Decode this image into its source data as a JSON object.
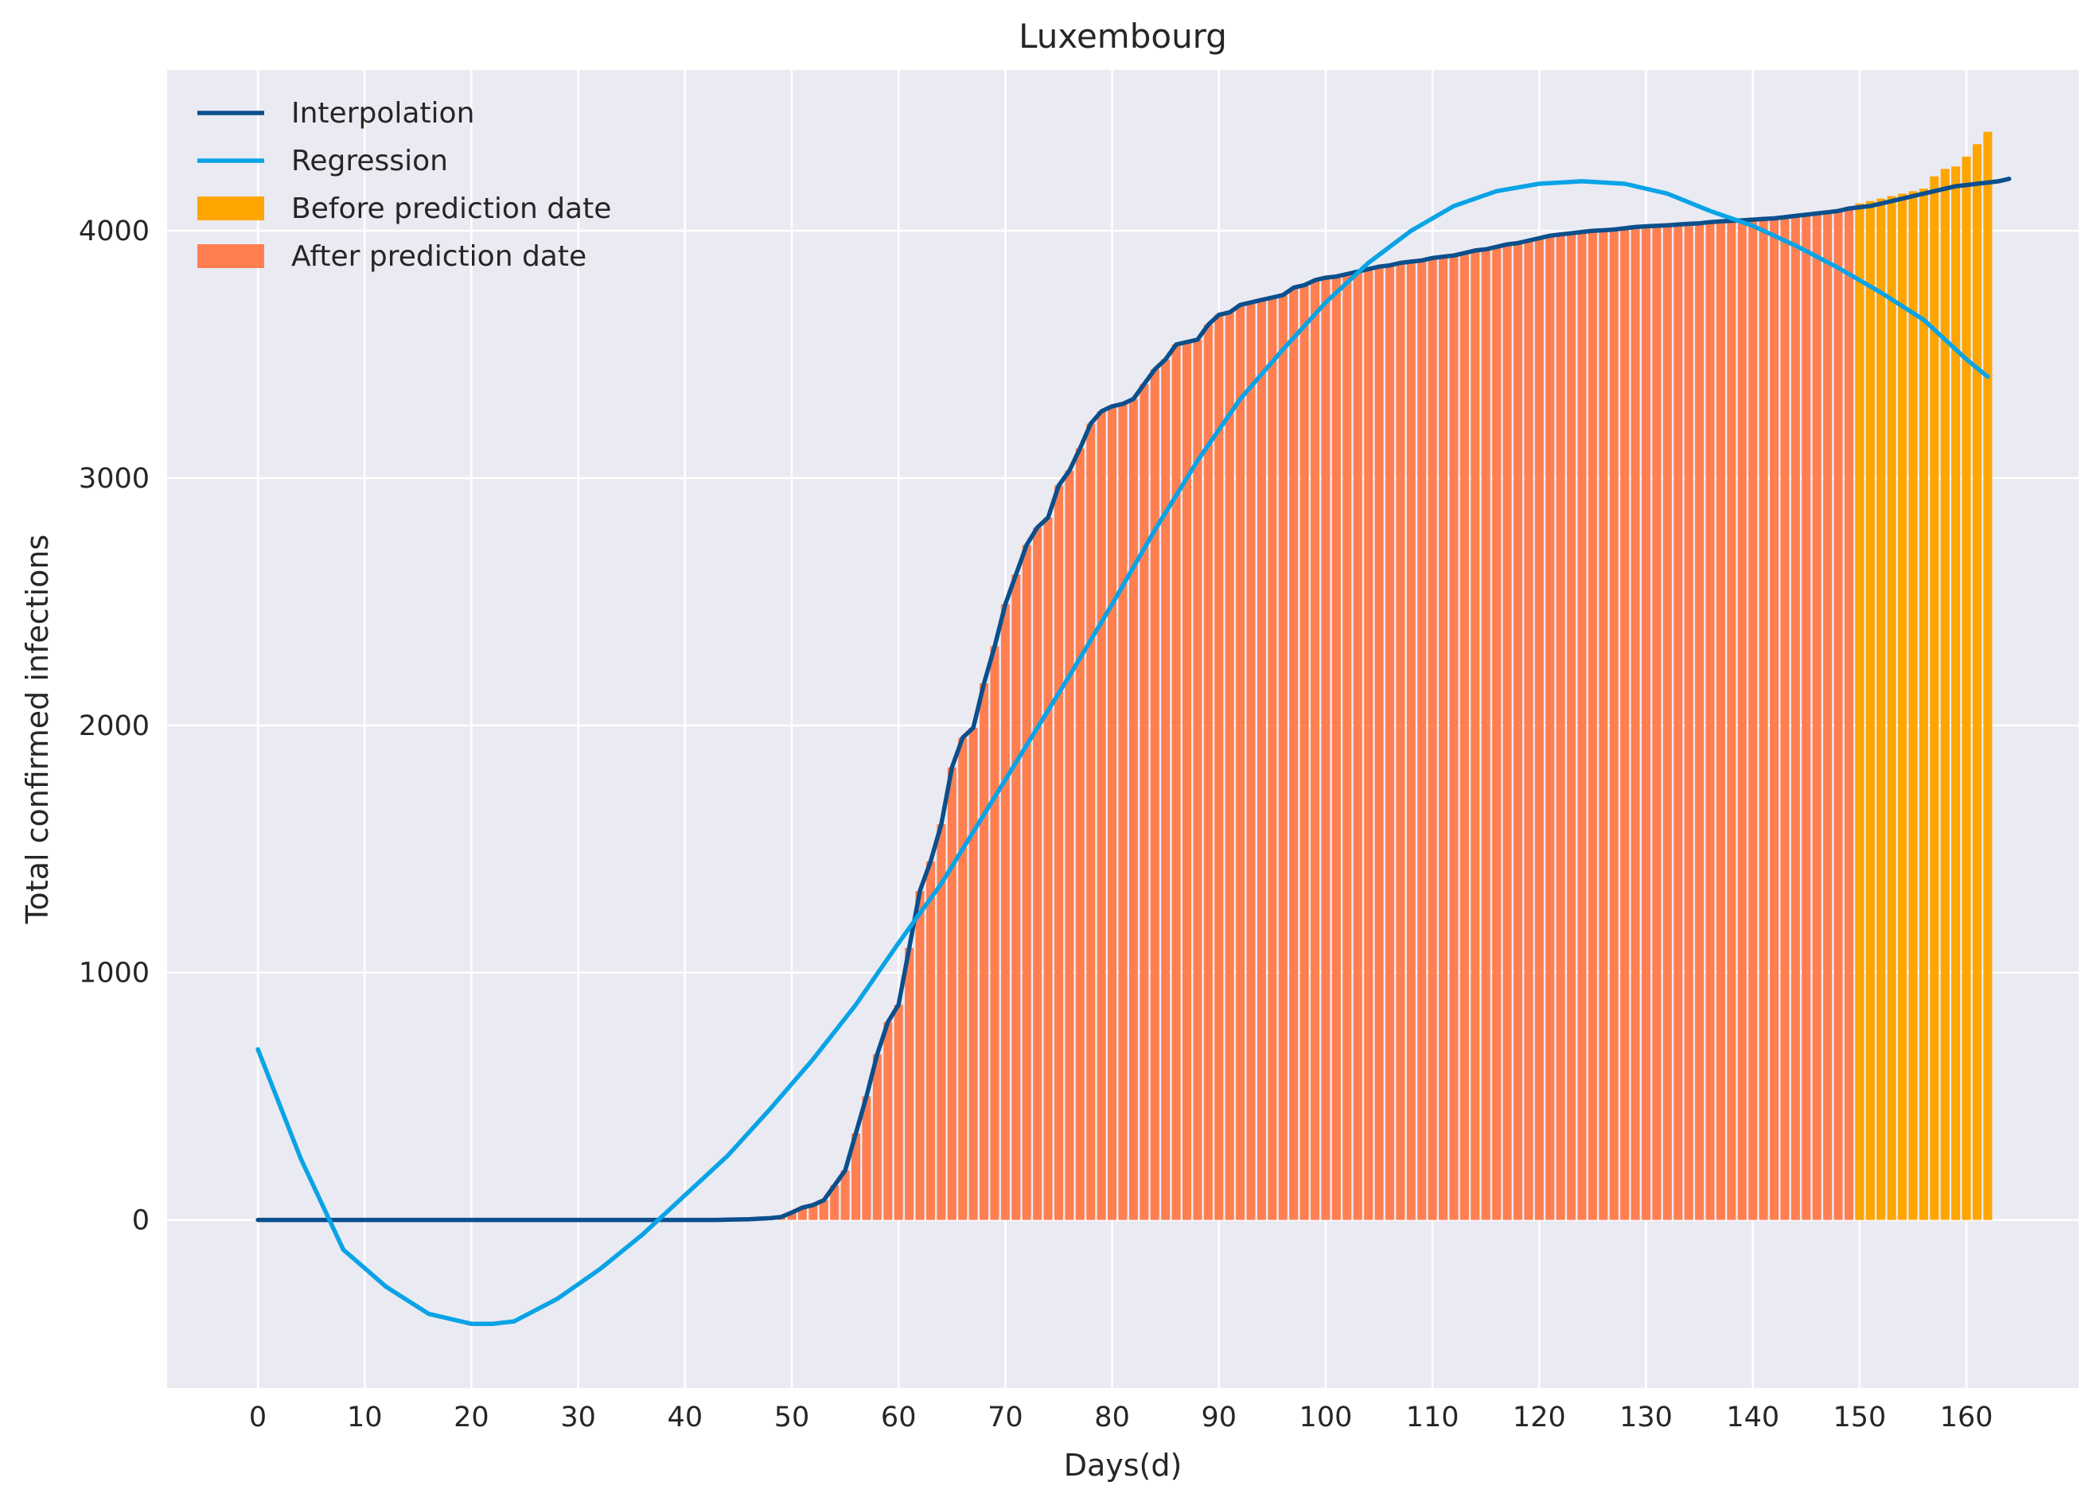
{
  "chart_data": {
    "type": "bar",
    "title": "Luxembourg",
    "xlabel": "Days(d)",
    "ylabel": "Total confirmed infections",
    "xlim": [
      -8.5,
      170.5
    ],
    "ylim": [
      -680,
      4650
    ],
    "xticks": [
      0,
      10,
      20,
      30,
      40,
      50,
      60,
      70,
      80,
      90,
      100,
      110,
      120,
      130,
      140,
      150,
      160
    ],
    "yticks": [
      0,
      1000,
      2000,
      3000,
      4000
    ],
    "grid": true,
    "legend_position": "top-left",
    "colors": {
      "background": "#eaeaf2",
      "grid": "#ffffff",
      "interpolation": "#0b4f8c",
      "regression": "#0aa3e6",
      "before_prediction": "#ffa500",
      "after_prediction": "#ff7f50"
    },
    "legend": [
      {
        "label": "Interpolation",
        "kind": "line",
        "color": "#0b4f8c"
      },
      {
        "label": "Regression",
        "kind": "line",
        "color": "#0aa3e6"
      },
      {
        "label": "Before prediction date",
        "kind": "patch",
        "color": "#ffa500"
      },
      {
        "label": "After prediction date",
        "kind": "patch",
        "color": "#ff7f50"
      }
    ],
    "bars_after_prediction_date": {
      "x_start": 0,
      "values": [
        0,
        0,
        0,
        0,
        0,
        0,
        0,
        0,
        0,
        0,
        0,
        0,
        0,
        0,
        0,
        0,
        0,
        0,
        0,
        0,
        0,
        0,
        0,
        0,
        0,
        0,
        0,
        0,
        0,
        0,
        0,
        0,
        0,
        0,
        0,
        0,
        0,
        0,
        0,
        0,
        0,
        0,
        0,
        0,
        1,
        2,
        3,
        5,
        7,
        12,
        30,
        50,
        60,
        80,
        140,
        200,
        350,
        500,
        670,
        800,
        870,
        1100,
        1330,
        1450,
        1600,
        1830,
        1950,
        1990,
        2170,
        2320,
        2490,
        2610,
        2730,
        2800,
        2840,
        2970,
        3030,
        3120,
        3220,
        3270,
        3290,
        3300,
        3320,
        3380,
        3440,
        3480,
        3540,
        3550,
        3560,
        3620,
        3660,
        3670,
        3700,
        3710,
        3720,
        3730,
        3740,
        3770,
        3780,
        3800,
        3810,
        3815,
        3825,
        3835,
        3845,
        3855,
        3860,
        3870,
        3875,
        3880,
        3890,
        3895,
        3900,
        3910,
        3920,
        3925,
        3935,
        3945,
        3950,
        3960,
        3970,
        3980,
        3985,
        3990,
        3995,
        4000,
        4002,
        4005,
        4010,
        4015,
        4018,
        4020,
        4022,
        4025,
        4028,
        4030,
        4035,
        4038,
        4040,
        4042,
        4045,
        4048,
        4050,
        4055,
        4060,
        4065,
        4070,
        4075,
        4080,
        4090,
        4095,
        4100
      ]
    },
    "bars_before_prediction_date": {
      "x_start": 150,
      "values": [
        4110,
        4120,
        4130,
        4140,
        4150,
        4160,
        4170,
        4220,
        4250,
        4260,
        4300,
        4350,
        4400
      ]
    },
    "interpolation": {
      "x_start": 0,
      "values": [
        0,
        0,
        0,
        0,
        0,
        0,
        0,
        0,
        0,
        0,
        0,
        0,
        0,
        0,
        0,
        0,
        0,
        0,
        0,
        0,
        0,
        0,
        0,
        0,
        0,
        0,
        0,
        0,
        0,
        0,
        0,
        0,
        0,
        0,
        0,
        0,
        0,
        0,
        0,
        0,
        0,
        0,
        0,
        0,
        1,
        2,
        3,
        5,
        7,
        12,
        30,
        50,
        60,
        80,
        140,
        200,
        350,
        500,
        670,
        800,
        870,
        1100,
        1330,
        1450,
        1600,
        1830,
        1950,
        1990,
        2170,
        2320,
        2490,
        2610,
        2730,
        2800,
        2840,
        2970,
        3030,
        3120,
        3220,
        3270,
        3290,
        3300,
        3320,
        3380,
        3440,
        3480,
        3540,
        3550,
        3560,
        3620,
        3660,
        3670,
        3700,
        3710,
        3720,
        3730,
        3740,
        3770,
        3780,
        3800,
        3810,
        3815,
        3825,
        3835,
        3845,
        3855,
        3860,
        3870,
        3875,
        3880,
        3890,
        3895,
        3900,
        3910,
        3920,
        3925,
        3935,
        3945,
        3950,
        3960,
        3970,
        3980,
        3985,
        3990,
        3995,
        4000,
        4002,
        4005,
        4010,
        4015,
        4018,
        4020,
        4022,
        4025,
        4028,
        4030,
        4035,
        4038,
        4040,
        4042,
        4045,
        4048,
        4050,
        4055,
        4060,
        4065,
        4070,
        4075,
        4080,
        4090,
        4095,
        4100,
        4110,
        4120,
        4130,
        4140,
        4150,
        4160,
        4170,
        4180,
        4185,
        4190,
        4195,
        4200,
        4210
      ]
    },
    "regression": {
      "x": [
        0,
        4,
        8,
        12,
        16,
        20,
        22,
        24,
        28,
        32,
        36,
        40,
        44,
        48,
        52,
        56,
        60,
        64,
        68,
        72,
        76,
        80,
        84,
        88,
        92,
        96,
        100,
        104,
        108,
        112,
        116,
        120,
        124,
        128,
        132,
        136,
        140,
        144,
        148,
        152,
        156,
        160,
        162
      ],
      "y": [
        690,
        250,
        -120,
        -270,
        -380,
        -420,
        -420,
        -410,
        -320,
        -200,
        -60,
        100,
        260,
        450,
        650,
        870,
        1120,
        1360,
        1640,
        1920,
        2200,
        2490,
        2790,
        3070,
        3320,
        3520,
        3710,
        3870,
        4000,
        4100,
        4160,
        4190,
        4200,
        4190,
        4150,
        4080,
        4020,
        3940,
        3850,
        3750,
        3640,
        3480,
        3410
      ]
    }
  }
}
